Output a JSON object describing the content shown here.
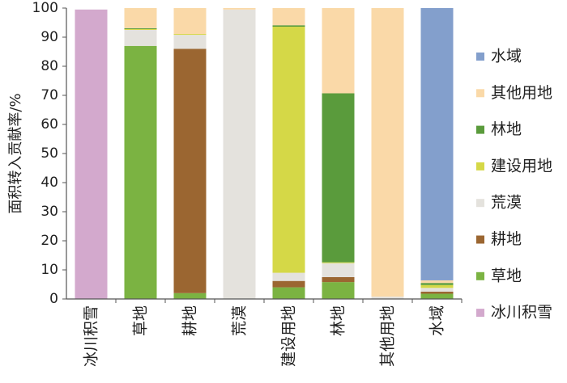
{
  "chart_data": {
    "type": "bar",
    "stacked": true,
    "ylabel": "面积转入贡献率/%",
    "ylim": [
      0,
      100
    ],
    "yticks": [
      0,
      10,
      20,
      30,
      40,
      50,
      60,
      70,
      80,
      90,
      100
    ],
    "grid": false,
    "legend_position": "right",
    "categories": [
      "冰川积雪",
      "草地",
      "耕地",
      "荒漠",
      "建设用地",
      "林地",
      "其他用地",
      "水域"
    ],
    "series": [
      {
        "name": "冰川积雪",
        "color": "#d3a9cd",
        "values": [
          99.5,
          0,
          0,
          0,
          0,
          0,
          0,
          0
        ]
      },
      {
        "name": "草地",
        "color": "#7bb342",
        "values": [
          0,
          87,
          2,
          0,
          4,
          5.8,
          0,
          1.8
        ]
      },
      {
        "name": "耕地",
        "color": "#9b6631",
        "values": [
          0,
          0,
          84,
          0,
          2.2,
          1.7,
          0,
          0.7
        ]
      },
      {
        "name": "荒漠",
        "color": "#e4e2dd",
        "values": [
          0,
          5.5,
          4.8,
          99.5,
          2.8,
          4.8,
          0.8,
          1.3
        ]
      },
      {
        "name": "建设用地",
        "color": "#d5d847",
        "values": [
          0,
          0.3,
          0.3,
          0,
          84.6,
          0.3,
          0,
          1
        ]
      },
      {
        "name": "林地",
        "color": "#5a9b3c",
        "values": [
          0,
          0.3,
          0,
          0,
          0.5,
          58.1,
          0,
          0.7
        ]
      },
      {
        "name": "其他用地",
        "color": "#fad9a8",
        "values": [
          0,
          6.9,
          8.9,
          0.5,
          5.9,
          29.3,
          99.2,
          0.9
        ]
      },
      {
        "name": "水域",
        "color": "#839fcc",
        "values": [
          0,
          0,
          0,
          0,
          0,
          0,
          0,
          93.6
        ]
      }
    ],
    "legend_order": [
      "水域",
      "其他用地",
      "林地",
      "建设用地",
      "荒漠",
      "耕地",
      "草地",
      "冰川积雪"
    ]
  }
}
